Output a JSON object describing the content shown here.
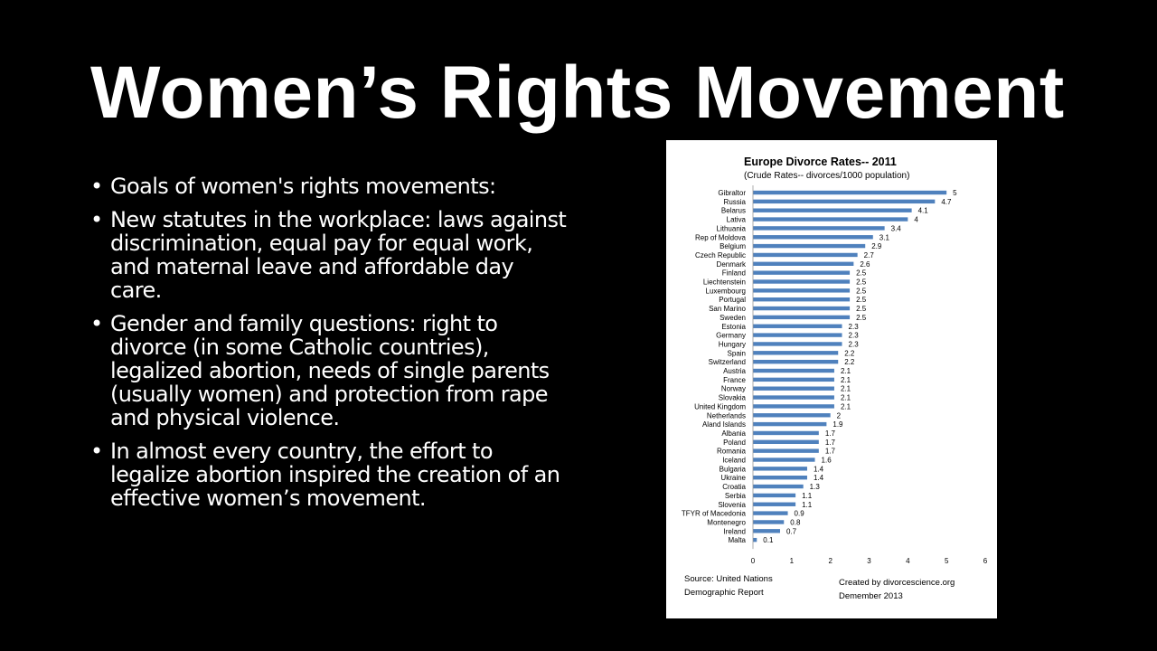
{
  "slide": {
    "title": "Women’s Rights Movement",
    "bullet_glyph": "•",
    "bullets": [
      "Goals of women's rights movements:",
      "New statutes in the workplace: laws against discrimination, equal pay for equal work, and maternal leave and affordable day care.",
      "Gender and family questions: right to divorce (in some Catholic countries), legalized abortion, needs of single parents (usually women) and protection from rape and physical violence.",
      "In almost every country, the effort to legalize abortion inspired the creation of an effective women’s movement."
    ]
  },
  "chart_data": {
    "type": "bar",
    "orientation": "horizontal",
    "title": "Europe Divorce Rates-- 2011",
    "subtitle": "(Crude Rates-- divorces/1000 population)",
    "categories": [
      "Gibraltor",
      "Russia",
      "Belarus",
      "Lativa",
      "Lithuania",
      "Rep of Moldova",
      "Belgium",
      "Czech Republic",
      "Denmark",
      "Finland",
      "Liechtenstein",
      "Luxembourg",
      "Portugal",
      "San Marino",
      "Sweden",
      "Estonia",
      "Germany",
      "Hungary",
      "Spain",
      "Switzerland",
      "Austria",
      "France",
      "Norway",
      "Slovakia",
      "United Kingdom",
      "Netherlands",
      "Aland Islands",
      "Albania",
      "Poland",
      "Romania",
      "Iceland",
      "Bulgaria",
      "Ukraine",
      "Croatia",
      "Serbia",
      "Slovenia",
      "TFYR of Macedonia",
      "Montenegro",
      "Ireland",
      "Malta"
    ],
    "values": [
      5,
      4.7,
      4.1,
      4,
      3.4,
      3.1,
      2.9,
      2.7,
      2.6,
      2.5,
      2.5,
      2.5,
      2.5,
      2.5,
      2.5,
      2.3,
      2.3,
      2.3,
      2.2,
      2.2,
      2.1,
      2.1,
      2.1,
      2.1,
      2.1,
      2,
      1.9,
      1.7,
      1.7,
      1.7,
      1.6,
      1.4,
      1.4,
      1.3,
      1.1,
      1.1,
      0.9,
      0.8,
      0.7,
      0.1
    ],
    "xlim": [
      0,
      6
    ],
    "xticks": [
      0,
      1,
      2,
      3,
      4,
      5,
      6
    ],
    "bar_color": "#4f81bd",
    "grid": false,
    "source_note": [
      "Source:  United Nations",
      "Demographic Report"
    ],
    "credit_note": [
      "Created by divorcescience.org",
      "Demember 2013"
    ]
  }
}
